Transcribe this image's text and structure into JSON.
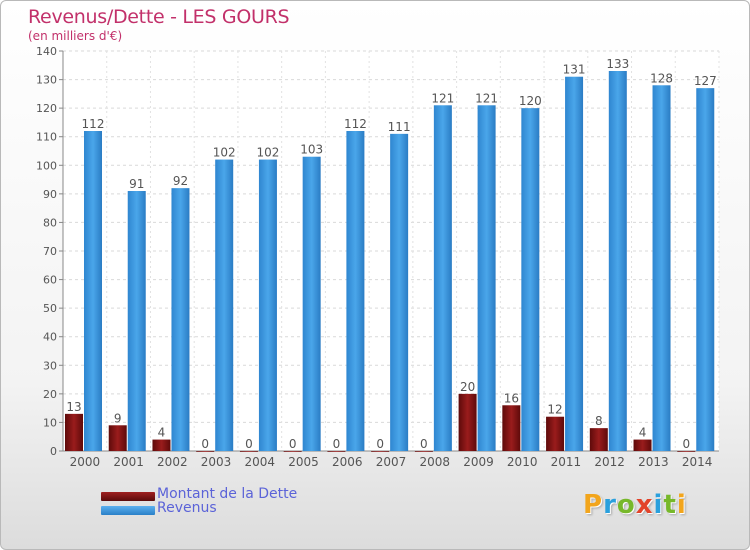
{
  "title": "Revenus/Dette - LES GOURS",
  "subtitle": "(en milliers d'€)",
  "logo": {
    "text": "Proxiti",
    "letters": [
      "P",
      "r",
      "o",
      "x",
      "i",
      "t",
      "i"
    ],
    "colors": [
      "#f2a51c",
      "#2aa0dd",
      "#77b82a",
      "#e2432a",
      "#2aa0dd",
      "#77b82a",
      "#f2a51c"
    ]
  },
  "colors": {
    "dette": "#7e1212",
    "revenus": "#3d98df",
    "title": "#c2306a",
    "legend_text": "#5b63d8"
  },
  "legend": {
    "position": "bottom-left",
    "items": [
      {
        "label": "Montant de la Dette",
        "color": "#7e1212"
      },
      {
        "label": "Revenus",
        "color": "#3d98df"
      }
    ]
  },
  "chart_data": {
    "type": "bar",
    "title": "Revenus/Dette - LES GOURS",
    "subtitle": "(en milliers d'€)",
    "categories": [
      "2000",
      "2001",
      "2002",
      "2003",
      "2004",
      "2005",
      "2006",
      "2007",
      "2008",
      "2009",
      "2010",
      "2011",
      "2012",
      "2013",
      "2014"
    ],
    "series": [
      {
        "name": "Montant de la Dette",
        "values": [
          13,
          9,
          4,
          0,
          0,
          0,
          0,
          0,
          0,
          20,
          16,
          12,
          8,
          4,
          0
        ]
      },
      {
        "name": "Revenus",
        "values": [
          112,
          91,
          92,
          102,
          102,
          103,
          112,
          111,
          121,
          121,
          120,
          131,
          133,
          128,
          127
        ]
      }
    ],
    "ylim": [
      0,
      140
    ],
    "yticks": [
      0,
      10,
      20,
      30,
      40,
      50,
      60,
      70,
      80,
      90,
      100,
      110,
      120,
      130,
      140
    ],
    "grid": true,
    "data_labels": true
  }
}
